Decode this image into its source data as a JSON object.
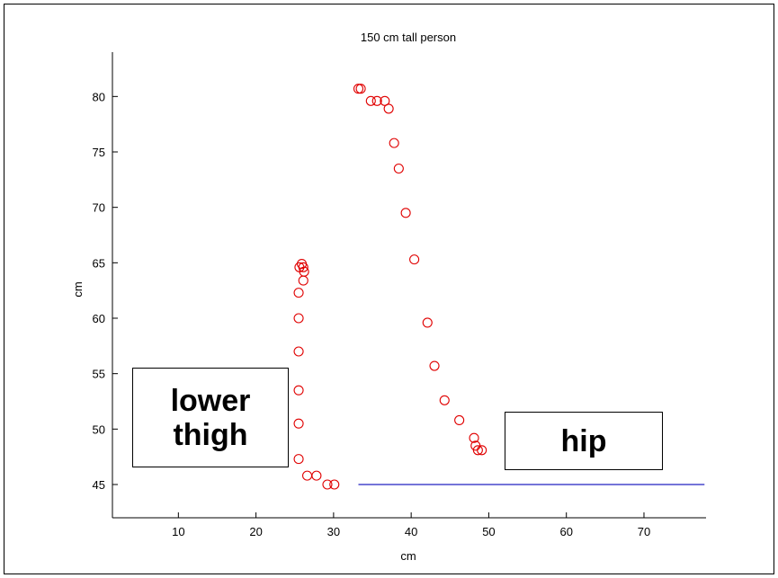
{
  "chart_data": {
    "type": "scatter",
    "title": "150 cm tall person",
    "xlabel": "cm",
    "ylabel": "cm",
    "xlim": [
      1.5,
      78
    ],
    "ylim": [
      42,
      84
    ],
    "xticks": [
      10,
      20,
      30,
      40,
      50,
      60,
      70
    ],
    "yticks": [
      45,
      50,
      55,
      60,
      65,
      70,
      75,
      80
    ],
    "grid": false,
    "marker": "circle",
    "marker_color": "#e00000",
    "points": [
      [
        25.6,
        64.6
      ],
      [
        25.9,
        64.9
      ],
      [
        26.1,
        64.6
      ],
      [
        26.2,
        64.2
      ],
      [
        26.1,
        63.4
      ],
      [
        25.5,
        62.3
      ],
      [
        25.5,
        60.0
      ],
      [
        25.5,
        57.0
      ],
      [
        25.5,
        53.5
      ],
      [
        25.5,
        50.5
      ],
      [
        25.5,
        47.3
      ],
      [
        26.6,
        45.8
      ],
      [
        27.8,
        45.8
      ],
      [
        29.2,
        45.0
      ],
      [
        30.1,
        45.0
      ],
      [
        33.2,
        80.7
      ],
      [
        33.5,
        80.7
      ],
      [
        34.8,
        79.6
      ],
      [
        35.6,
        79.6
      ],
      [
        36.6,
        79.6
      ],
      [
        37.1,
        78.9
      ],
      [
        37.8,
        75.8
      ],
      [
        38.4,
        73.5
      ],
      [
        39.3,
        69.5
      ],
      [
        40.4,
        65.3
      ],
      [
        42.1,
        59.6
      ],
      [
        43.0,
        55.7
      ],
      [
        44.3,
        52.6
      ],
      [
        46.2,
        50.8
      ],
      [
        48.1,
        49.2
      ],
      [
        48.3,
        48.5
      ],
      [
        48.6,
        48.1
      ],
      [
        49.1,
        48.1
      ]
    ],
    "lines": [
      {
        "x": [
          33.2,
          77.8
        ],
        "y": [
          45,
          45
        ],
        "color": "#2020c0"
      }
    ]
  },
  "annotations": {
    "lower_thigh": [
      "lower",
      "thigh"
    ],
    "hip": "hip"
  }
}
